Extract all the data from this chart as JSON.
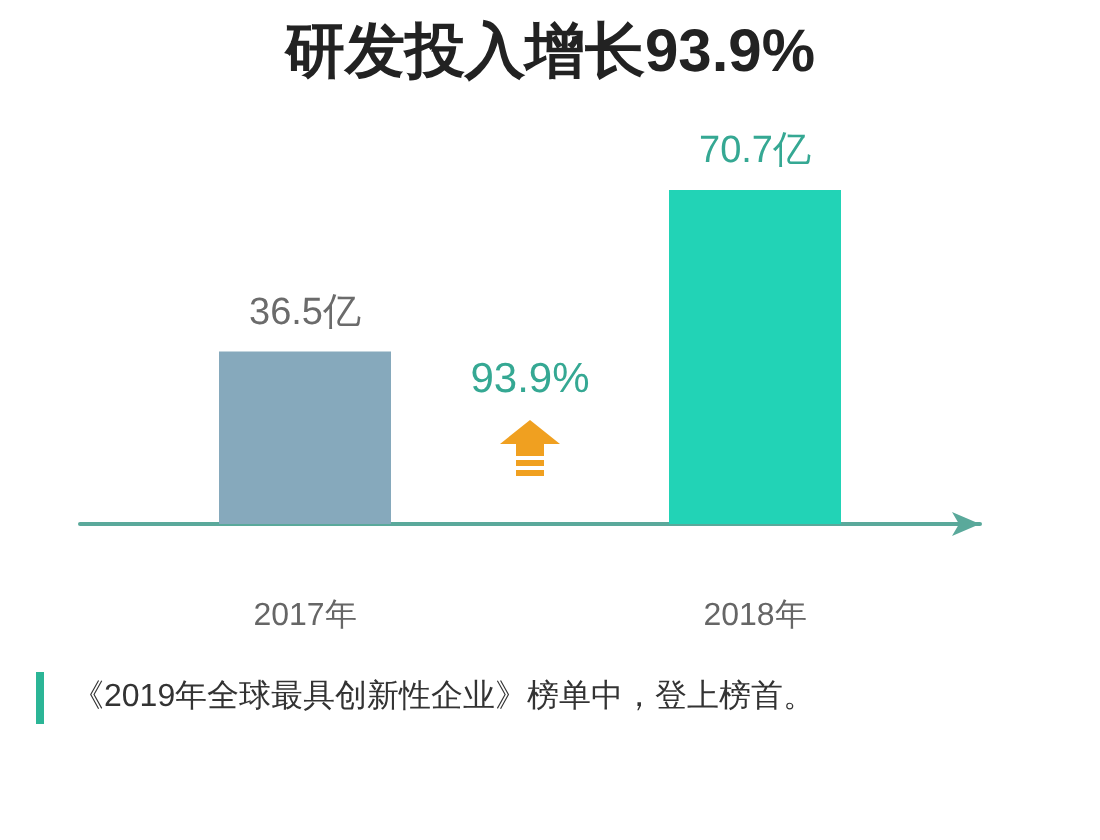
{
  "chart_data": {
    "type": "bar",
    "title": "研发投入增长93.9%",
    "categories": [
      "2017年",
      "2018年"
    ],
    "values": [
      36.5,
      70.7
    ],
    "colors": [
      "#86a9bc",
      "#22d3b6"
    ],
    "value_labels": [
      "36.5亿",
      "70.7亿"
    ],
    "annotations": [
      "93.9%",
      "《2019年全球最具创新性企业》榜单中，登上榜首。"
    ],
    "grid": false
  }
}
